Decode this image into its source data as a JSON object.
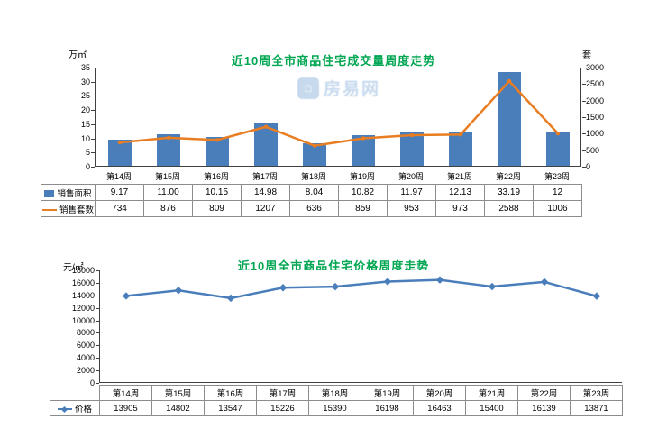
{
  "watermark": {
    "text": "房易网"
  },
  "chart_data": [
    {
      "type": "bar",
      "title": "近10周全市商品住宅成交量周度走势",
      "categories": [
        "第14周",
        "第15周",
        "第16周",
        "第17周",
        "第18周",
        "第19周",
        "第20周",
        "第21周",
        "第22周",
        "第23周"
      ],
      "left_axis": {
        "unit": "万㎡",
        "ticks": [
          0,
          5,
          10,
          15,
          20,
          25,
          30,
          35
        ],
        "max": 35
      },
      "right_axis": {
        "unit": "套",
        "ticks": [
          0,
          500,
          1000,
          1500,
          2000,
          2500,
          3000
        ],
        "max": 3000
      },
      "grid": false,
      "legend_position": "table-left",
      "series": [
        {
          "name": "销售面积",
          "type": "bar",
          "axis": "left",
          "color": "#4a7ebb",
          "values": [
            9.17,
            11.0,
            10.15,
            14.98,
            8.04,
            10.82,
            11.97,
            12.13,
            33.19,
            12
          ],
          "labels": [
            "9.17",
            "11.00",
            "10.15",
            "14.98",
            "8.04",
            "10.82",
            "11.97",
            "12.13",
            "33.19",
            "12"
          ]
        },
        {
          "name": "销售套数",
          "type": "line",
          "axis": "right",
          "color": "#e87d22",
          "marker": "dot",
          "values": [
            734,
            876,
            809,
            1207,
            636,
            859,
            953,
            973,
            2588,
            1006
          ],
          "labels": [
            "734",
            "876",
            "809",
            "1207",
            "636",
            "859",
            "953",
            "973",
            "2588",
            "1006"
          ]
        }
      ]
    },
    {
      "type": "line",
      "title": "近10周全市商品住宅价格周度走势",
      "categories": [
        "第14周",
        "第15周",
        "第16周",
        "第17周",
        "第18周",
        "第19周",
        "第20周",
        "第21周",
        "第22周",
        "第23周"
      ],
      "y_axis": {
        "unit": "元/㎡",
        "ticks": [
          0,
          2000,
          4000,
          6000,
          8000,
          10000,
          12000,
          14000,
          16000,
          18000
        ],
        "max": 18000
      },
      "grid": false,
      "legend_position": "table-left",
      "series": [
        {
          "name": "价格",
          "type": "line",
          "color": "#4a7ebb",
          "marker": "diamond",
          "values": [
            13905,
            14802,
            13547,
            15226,
            15390,
            16198,
            16463,
            15400,
            16139,
            13871
          ],
          "labels": [
            "13905",
            "14802",
            "13547",
            "15226",
            "15390",
            "16198",
            "16463",
            "15400",
            "16139",
            "13871"
          ]
        }
      ]
    }
  ]
}
